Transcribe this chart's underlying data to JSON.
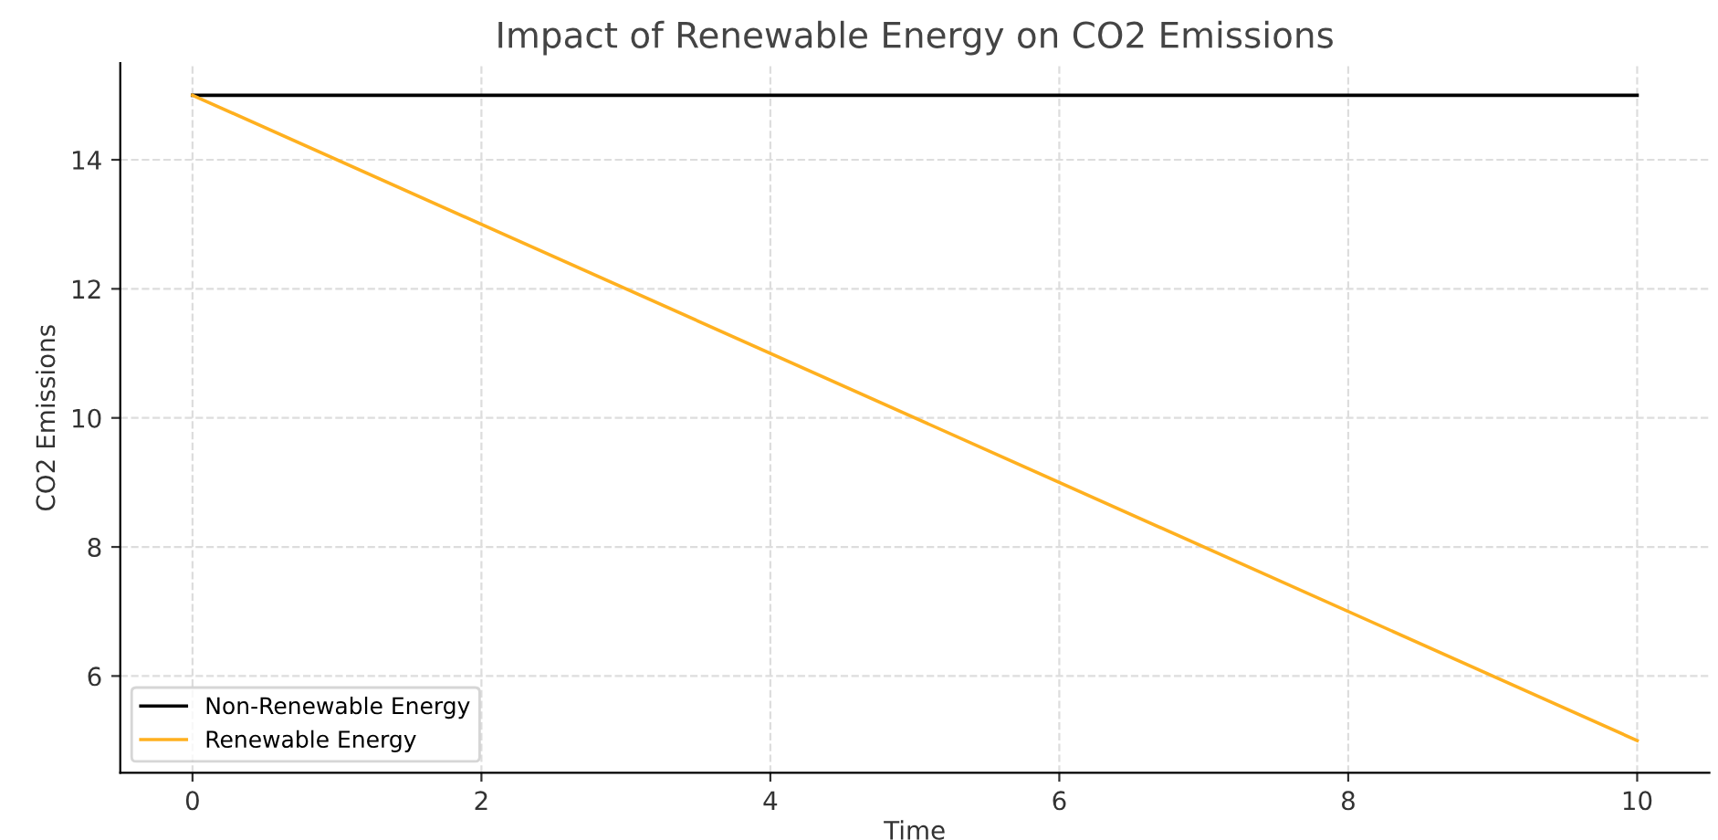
{
  "chart_data": {
    "type": "line",
    "title": "Impact of Renewable Energy on CO2 Emissions",
    "xlabel": "Time",
    "ylabel": "CO2 Emissions",
    "x": [
      0,
      10
    ],
    "series": [
      {
        "name": "Non-Renewable Energy",
        "color": "#000000",
        "values": [
          15,
          15
        ]
      },
      {
        "name": "Renewable Energy",
        "color": "#ffb01f",
        "values": [
          15,
          5
        ]
      }
    ],
    "xlim": [
      -0.5,
      10.5
    ],
    "ylim": [
      4.5,
      15.5
    ],
    "xticks": [
      0,
      2,
      4,
      6,
      8,
      10
    ],
    "yticks": [
      6,
      8,
      10,
      12,
      14
    ],
    "grid": true,
    "legend": "bottom left",
    "line_style": "solid",
    "marker": "none"
  }
}
